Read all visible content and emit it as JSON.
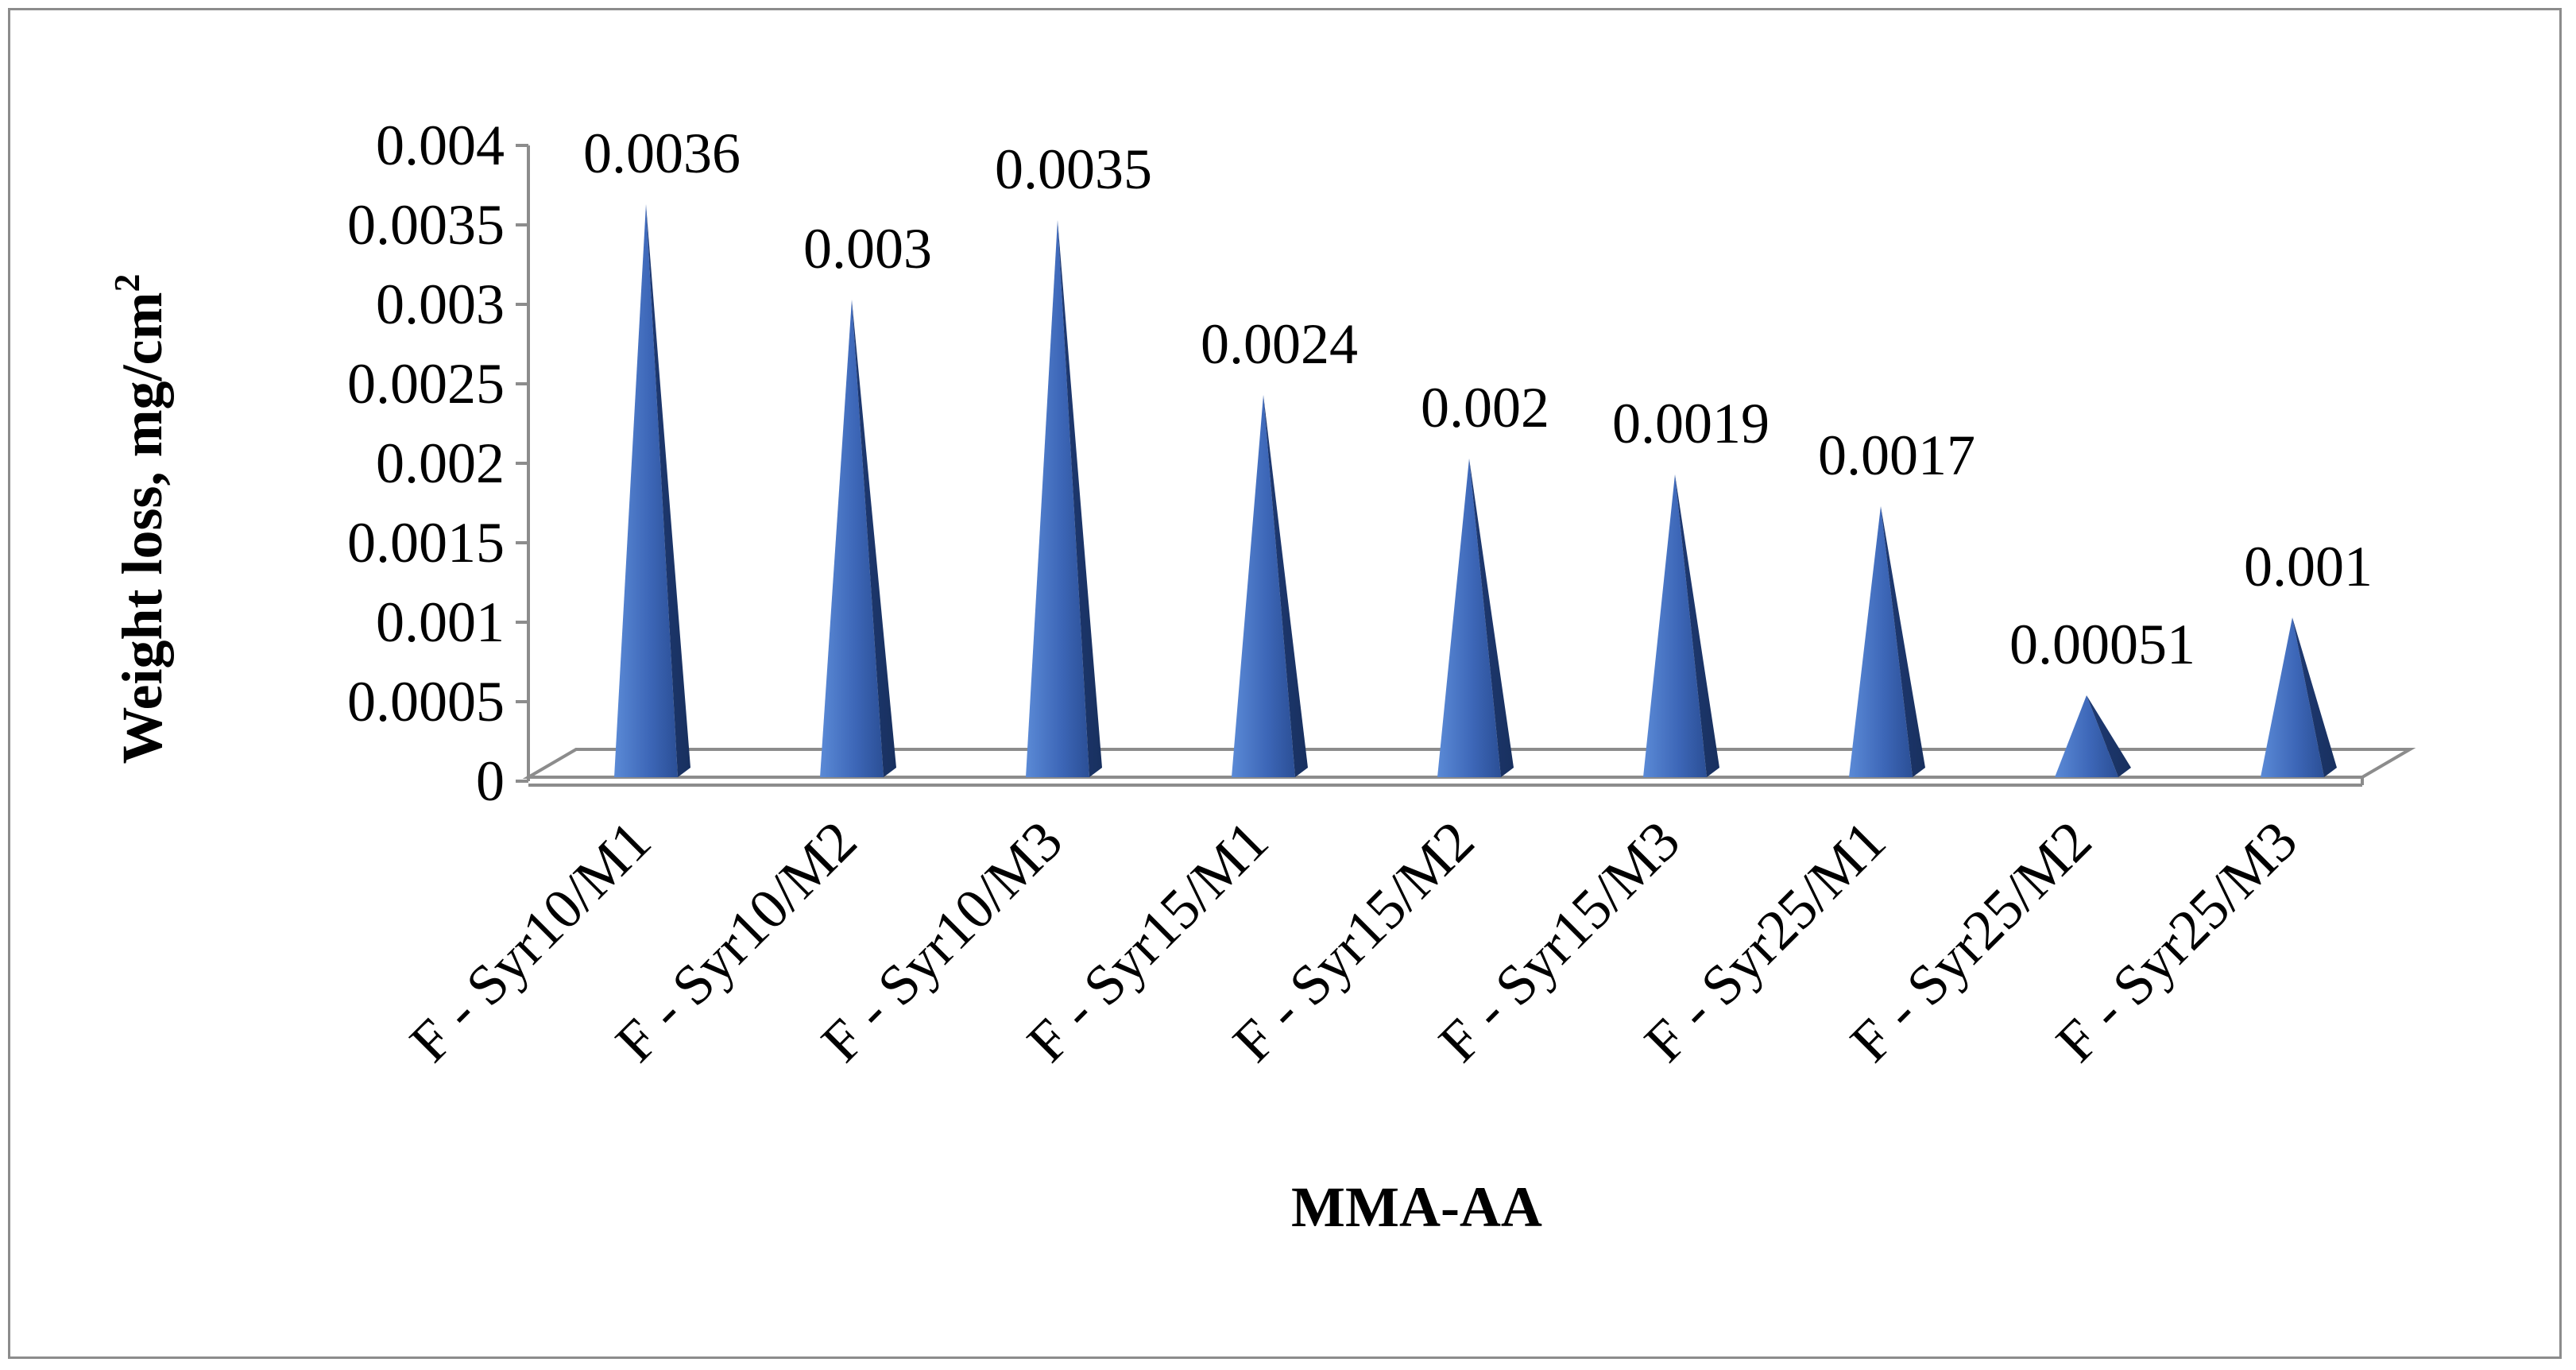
{
  "chart_data": {
    "type": "bar",
    "categories": [
      "F - Syr10/M1",
      "F - Syr10/M2",
      "F - Syr10/M3",
      "F - Syr15/M1",
      "F - Syr15/M2",
      "F - Syr15/M3",
      "F - Syr25/M1",
      "F - Syr25/M2",
      "F - Syr25/M3"
    ],
    "values": [
      0.0036,
      0.003,
      0.0035,
      0.0024,
      0.002,
      0.0019,
      0.0017,
      0.00051,
      0.001
    ],
    "data_labels": [
      "0.0036",
      "0.003",
      "0.0035",
      "0.0024",
      "0.002",
      "0.0019",
      "0.0017",
      "0.00051",
      "0.001"
    ],
    "y_ticks": [
      "0",
      "0.0005",
      "0.001",
      "0.0015",
      "0.002",
      "0.0025",
      "0.003",
      "0.0035",
      "0.004"
    ],
    "ylim": [
      0,
      0.004
    ],
    "xlabel": "MMA-AA",
    "ylabel": "Weight loss, mg/cm",
    "ylabel_superscript": "2",
    "bar_shape": "3d-cone",
    "bar_color": "#4472c4",
    "bar_dark_color": "#203864",
    "grid": false,
    "legend": "none"
  }
}
